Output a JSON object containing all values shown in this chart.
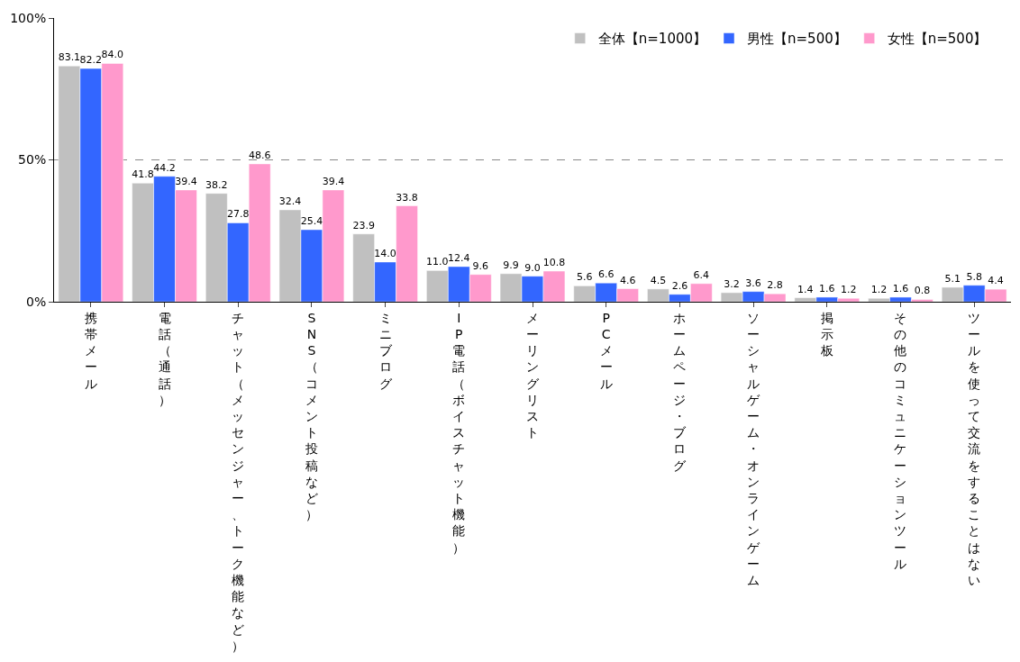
{
  "chart_data": {
    "type": "bar",
    "categories": [
      "携帯メール",
      "電話（通話）",
      "チャット（メッセンジャー、トーク機能など）",
      "SNS（コメント投稿など）",
      "ミニブログ",
      "IP電話（ボイスチャット機能）",
      "メーリングリスト",
      "PCメール",
      "ホームページ・ブログ",
      "ソーシャルゲーム・オンラインゲーム",
      "掲示板",
      "その他のコミュニケーションツール",
      "ツールを使って交流をすることはない"
    ],
    "series": [
      {
        "name": "全体【n=1000】",
        "color": "#c0c0c0",
        "values": [
          83.1,
          41.8,
          38.2,
          32.4,
          23.9,
          11.0,
          9.9,
          5.6,
          4.5,
          3.2,
          1.4,
          1.2,
          5.1
        ],
        "value_labels": [
          "83.1",
          "41.8",
          "38.2",
          "32.4",
          "23.9",
          "11.0",
          "9.9",
          "5.6",
          "4.5",
          "3.2",
          "1.4",
          "1.2",
          "5.1"
        ]
      },
      {
        "name": "男性【n=500】",
        "color": "#3366ff",
        "values": [
          82.2,
          44.2,
          27.8,
          25.4,
          14.0,
          12.4,
          9.0,
          6.6,
          2.6,
          3.6,
          1.6,
          1.6,
          5.8
        ],
        "value_labels": [
          "82.2",
          "44.2",
          "27.8",
          "25.4",
          "14.0",
          "12.4",
          "9.0",
          "6.6",
          "2.6",
          "3.6",
          "1.6",
          "1.6",
          "5.8"
        ]
      },
      {
        "name": "女性【n=500】",
        "color": "#ff99cc",
        "values": [
          84.0,
          39.4,
          48.6,
          39.4,
          33.8,
          9.6,
          10.8,
          4.6,
          6.4,
          2.8,
          1.2,
          0.8,
          4.4
        ],
        "value_labels": [
          "84.0",
          "39.4",
          "48.6",
          "39.4",
          "33.8",
          "9.6",
          "10.8",
          "4.6",
          "6.4",
          "2.8",
          "1.2",
          "0.8",
          "4.4"
        ]
      }
    ],
    "ylim": [
      0,
      100
    ],
    "yticks": [
      {
        "value": 0,
        "label": "0%"
      },
      {
        "value": 50,
        "label": "50%"
      },
      {
        "value": 100,
        "label": "100%"
      }
    ],
    "grid": "y",
    "legend": "top right"
  }
}
